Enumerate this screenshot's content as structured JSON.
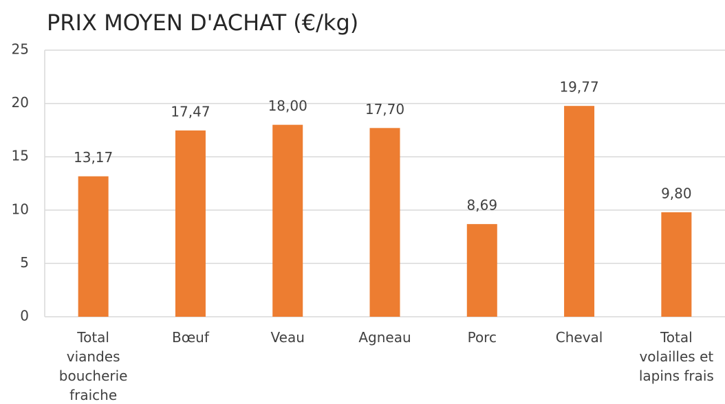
{
  "chart_data": {
    "type": "bar",
    "title": "PRIX MOYEN D'ACHAT (€/kg)",
    "categories": [
      "Total viandes boucherie fraiche",
      "Bœuf",
      "Veau",
      "Agneau",
      "Porc",
      "Cheval",
      "Total volailles et lapins frais"
    ],
    "values": [
      13.17,
      17.47,
      18.0,
      17.7,
      8.69,
      19.77,
      9.8
    ],
    "value_labels": [
      "13,17",
      "17,47",
      "18,00",
      "17,70",
      "8,69",
      "19,77",
      "9,80"
    ],
    "color": "#ed7d31",
    "ylim": [
      0,
      25
    ],
    "yticks": [
      0,
      5,
      10,
      15,
      20,
      25
    ],
    "grid": true
  }
}
